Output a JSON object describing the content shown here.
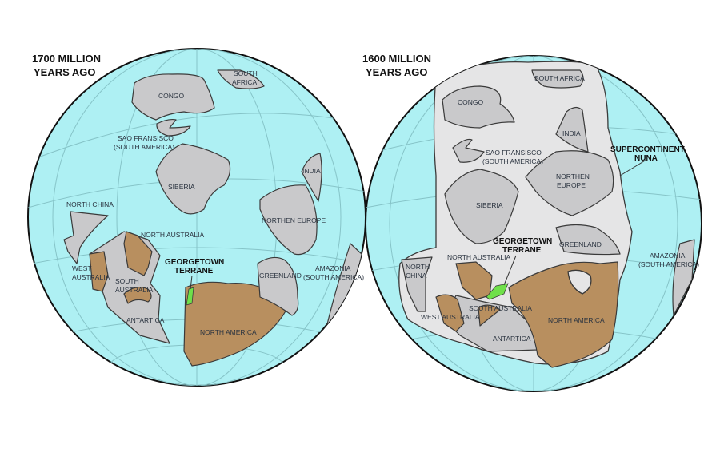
{
  "colors": {
    "ocean": "#aef0f3",
    "land": "#c9c9cb",
    "craton": "#b88f5f",
    "supercontinent": "#e5e5e6",
    "georgetown_terrane": "#6fe04a"
  },
  "globes": [
    {
      "title_line1": "1700 MILLION",
      "title_line2": "YEARS AGO",
      "labels": {
        "south_africa_1": "SOUTH",
        "south_africa_2": "AFRICA",
        "congo": "CONGO",
        "sao_1": "SAO FRANSISCO",
        "sao_2": "(SOUTH AMERICA)",
        "siberia": "SIBERIA",
        "india": "INDIA",
        "north_china": "NORTH CHINA",
        "northen_europe": "NORTHEN EUROPE",
        "north_australia": "NORTH AUSTRALIA",
        "georgetown_1": "GEORGETOWN",
        "georgetown_2": "TERRANE",
        "west_australia_1": "WEST",
        "west_australia_2": "AUSTRALIA",
        "south_australia_1": "SOUTH",
        "south_australia_2": "AUSTRALIA",
        "greenland": "GREENLAND",
        "amazonia_1": "AMAZONIA",
        "amazonia_2": "(SOUTH AMERICA)",
        "antartica": "ANTARTICA",
        "north_america": "NORTH AMERICA"
      }
    },
    {
      "title_line1": "1600 MILLION",
      "title_line2": "YEARS AGO",
      "labels": {
        "south_africa": "SOUTH AFRICA",
        "congo": "CONGO",
        "india": "INDIA",
        "sao_1": "SAO FRANSISCO",
        "sao_2": "(SOUTH AMERICA)",
        "supercontinent_1": "SUPERCONTINENT",
        "supercontinent_2": "NUNA",
        "northen_europe_1": "NORTHEN",
        "northen_europe_2": "EUROPE",
        "siberia": "SIBERIA",
        "georgetown_1": "GEORGETOWN",
        "georgetown_2": "TERRANE",
        "greenland": "GREENLAND",
        "north_australia": "NORTH AUSTRALIA",
        "north_china_1": "NORTH",
        "north_china_2": "CHINA",
        "amazonia_1": "AMAZONIA",
        "amazonia_2": "(SOUTH AMERICA)",
        "south_australia": "SOUTH AUSTRALIA",
        "west_australia": "WEST AUSTRALIA",
        "north_america": "NORTH AMERICA",
        "antartica": "ANTARTICA"
      }
    }
  ]
}
